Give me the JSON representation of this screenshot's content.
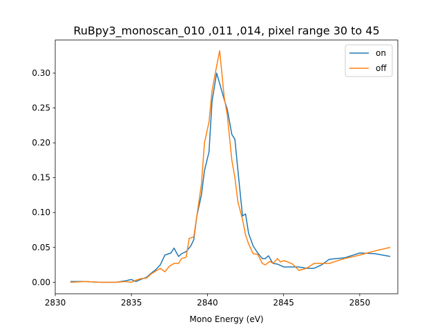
{
  "chart_data": {
    "type": "line",
    "title": "RuBpy3_monoscan_010 ,011 ,014, pixel range 30 to 45",
    "xlabel": "Mono Energy (eV)",
    "ylabel": "",
    "xlim": [
      2830,
      2852.5
    ],
    "ylim": [
      -0.0165,
      0.3475
    ],
    "x_ticks": [
      2830,
      2835,
      2840,
      2845,
      2850
    ],
    "y_ticks": [
      0.0,
      0.05,
      0.1,
      0.15,
      0.2,
      0.25,
      0.3
    ],
    "x_tick_labels": [
      "2830",
      "2835",
      "2840",
      "2845",
      "2850"
    ],
    "y_tick_labels": [
      "0.00",
      "0.05",
      "0.10",
      "0.15",
      "0.20",
      "0.25",
      "0.30"
    ],
    "grid": false,
    "legend_position": "top-right",
    "series": [
      {
        "name": "on",
        "color": "#1f77b4",
        "points": [
          [
            2831.0,
            0.001
          ],
          [
            2832.0,
            0.001
          ],
          [
            2833.0,
            0.0
          ],
          [
            2834.0,
            0.0
          ],
          [
            2834.6,
            0.002
          ],
          [
            2835.0,
            0.004
          ],
          [
            2835.3,
            0.001
          ],
          [
            2835.6,
            0.004
          ],
          [
            2836.0,
            0.007
          ],
          [
            2836.3,
            0.013
          ],
          [
            2836.6,
            0.018
          ],
          [
            2836.9,
            0.025
          ],
          [
            2837.2,
            0.039
          ],
          [
            2837.6,
            0.042
          ],
          [
            2837.8,
            0.049
          ],
          [
            2838.1,
            0.037
          ],
          [
            2838.3,
            0.041
          ],
          [
            2838.6,
            0.044
          ],
          [
            2838.9,
            0.052
          ],
          [
            2839.1,
            0.061
          ],
          [
            2839.3,
            0.095
          ],
          [
            2839.6,
            0.125
          ],
          [
            2839.8,
            0.16
          ],
          [
            2840.1,
            0.187
          ],
          [
            2840.3,
            0.26
          ],
          [
            2840.6,
            0.3
          ],
          [
            2840.8,
            0.285
          ],
          [
            2841.1,
            0.262
          ],
          [
            2841.3,
            0.248
          ],
          [
            2841.6,
            0.212
          ],
          [
            2841.8,
            0.205
          ],
          [
            2842.0,
            0.16
          ],
          [
            2842.3,
            0.095
          ],
          [
            2842.5,
            0.098
          ],
          [
            2842.7,
            0.07
          ],
          [
            2843.0,
            0.052
          ],
          [
            2843.3,
            0.042
          ],
          [
            2843.6,
            0.034
          ],
          [
            2843.8,
            0.034
          ],
          [
            2844.0,
            0.038
          ],
          [
            2844.3,
            0.027
          ],
          [
            2844.6,
            0.026
          ],
          [
            2845.0,
            0.022
          ],
          [
            2846.0,
            0.022
          ],
          [
            2846.5,
            0.02
          ],
          [
            2847.0,
            0.02
          ],
          [
            2847.5,
            0.025
          ],
          [
            2848.0,
            0.033
          ],
          [
            2849.0,
            0.035
          ],
          [
            2850.0,
            0.042
          ],
          [
            2851.0,
            0.041
          ],
          [
            2852.0,
            0.037
          ]
        ]
      },
      {
        "name": "off",
        "color": "#ff7f0e",
        "points": [
          [
            2831.0,
            0.0
          ],
          [
            2832.0,
            0.001
          ],
          [
            2833.0,
            0.0
          ],
          [
            2834.0,
            0.0
          ],
          [
            2834.6,
            0.001
          ],
          [
            2835.0,
            0.0
          ],
          [
            2835.3,
            0.003
          ],
          [
            2835.6,
            0.005
          ],
          [
            2836.0,
            0.006
          ],
          [
            2836.3,
            0.012
          ],
          [
            2836.6,
            0.016
          ],
          [
            2836.9,
            0.02
          ],
          [
            2837.2,
            0.015
          ],
          [
            2837.5,
            0.023
          ],
          [
            2837.8,
            0.027
          ],
          [
            2838.1,
            0.027
          ],
          [
            2838.3,
            0.034
          ],
          [
            2838.6,
            0.036
          ],
          [
            2838.8,
            0.063
          ],
          [
            2839.1,
            0.065
          ],
          [
            2839.3,
            0.095
          ],
          [
            2839.6,
            0.14
          ],
          [
            2839.8,
            0.2
          ],
          [
            2840.1,
            0.23
          ],
          [
            2840.3,
            0.275
          ],
          [
            2840.6,
            0.31
          ],
          [
            2840.8,
            0.332
          ],
          [
            2841.1,
            0.265
          ],
          [
            2841.3,
            0.24
          ],
          [
            2841.6,
            0.175
          ],
          [
            2841.8,
            0.15
          ],
          [
            2842.0,
            0.115
          ],
          [
            2842.3,
            0.09
          ],
          [
            2842.5,
            0.068
          ],
          [
            2842.7,
            0.055
          ],
          [
            2843.0,
            0.041
          ],
          [
            2843.3,
            0.04
          ],
          [
            2843.6,
            0.027
          ],
          [
            2843.8,
            0.025
          ],
          [
            2844.1,
            0.03
          ],
          [
            2844.3,
            0.027
          ],
          [
            2844.6,
            0.034
          ],
          [
            2844.8,
            0.029
          ],
          [
            2845.0,
            0.031
          ],
          [
            2845.3,
            0.029
          ],
          [
            2845.6,
            0.026
          ],
          [
            2846.0,
            0.017
          ],
          [
            2846.5,
            0.02
          ],
          [
            2847.0,
            0.027
          ],
          [
            2847.5,
            0.027
          ],
          [
            2848.0,
            0.027
          ],
          [
            2849.0,
            0.034
          ],
          [
            2850.0,
            0.039
          ],
          [
            2851.0,
            0.045
          ],
          [
            2852.0,
            0.05
          ]
        ]
      }
    ]
  }
}
